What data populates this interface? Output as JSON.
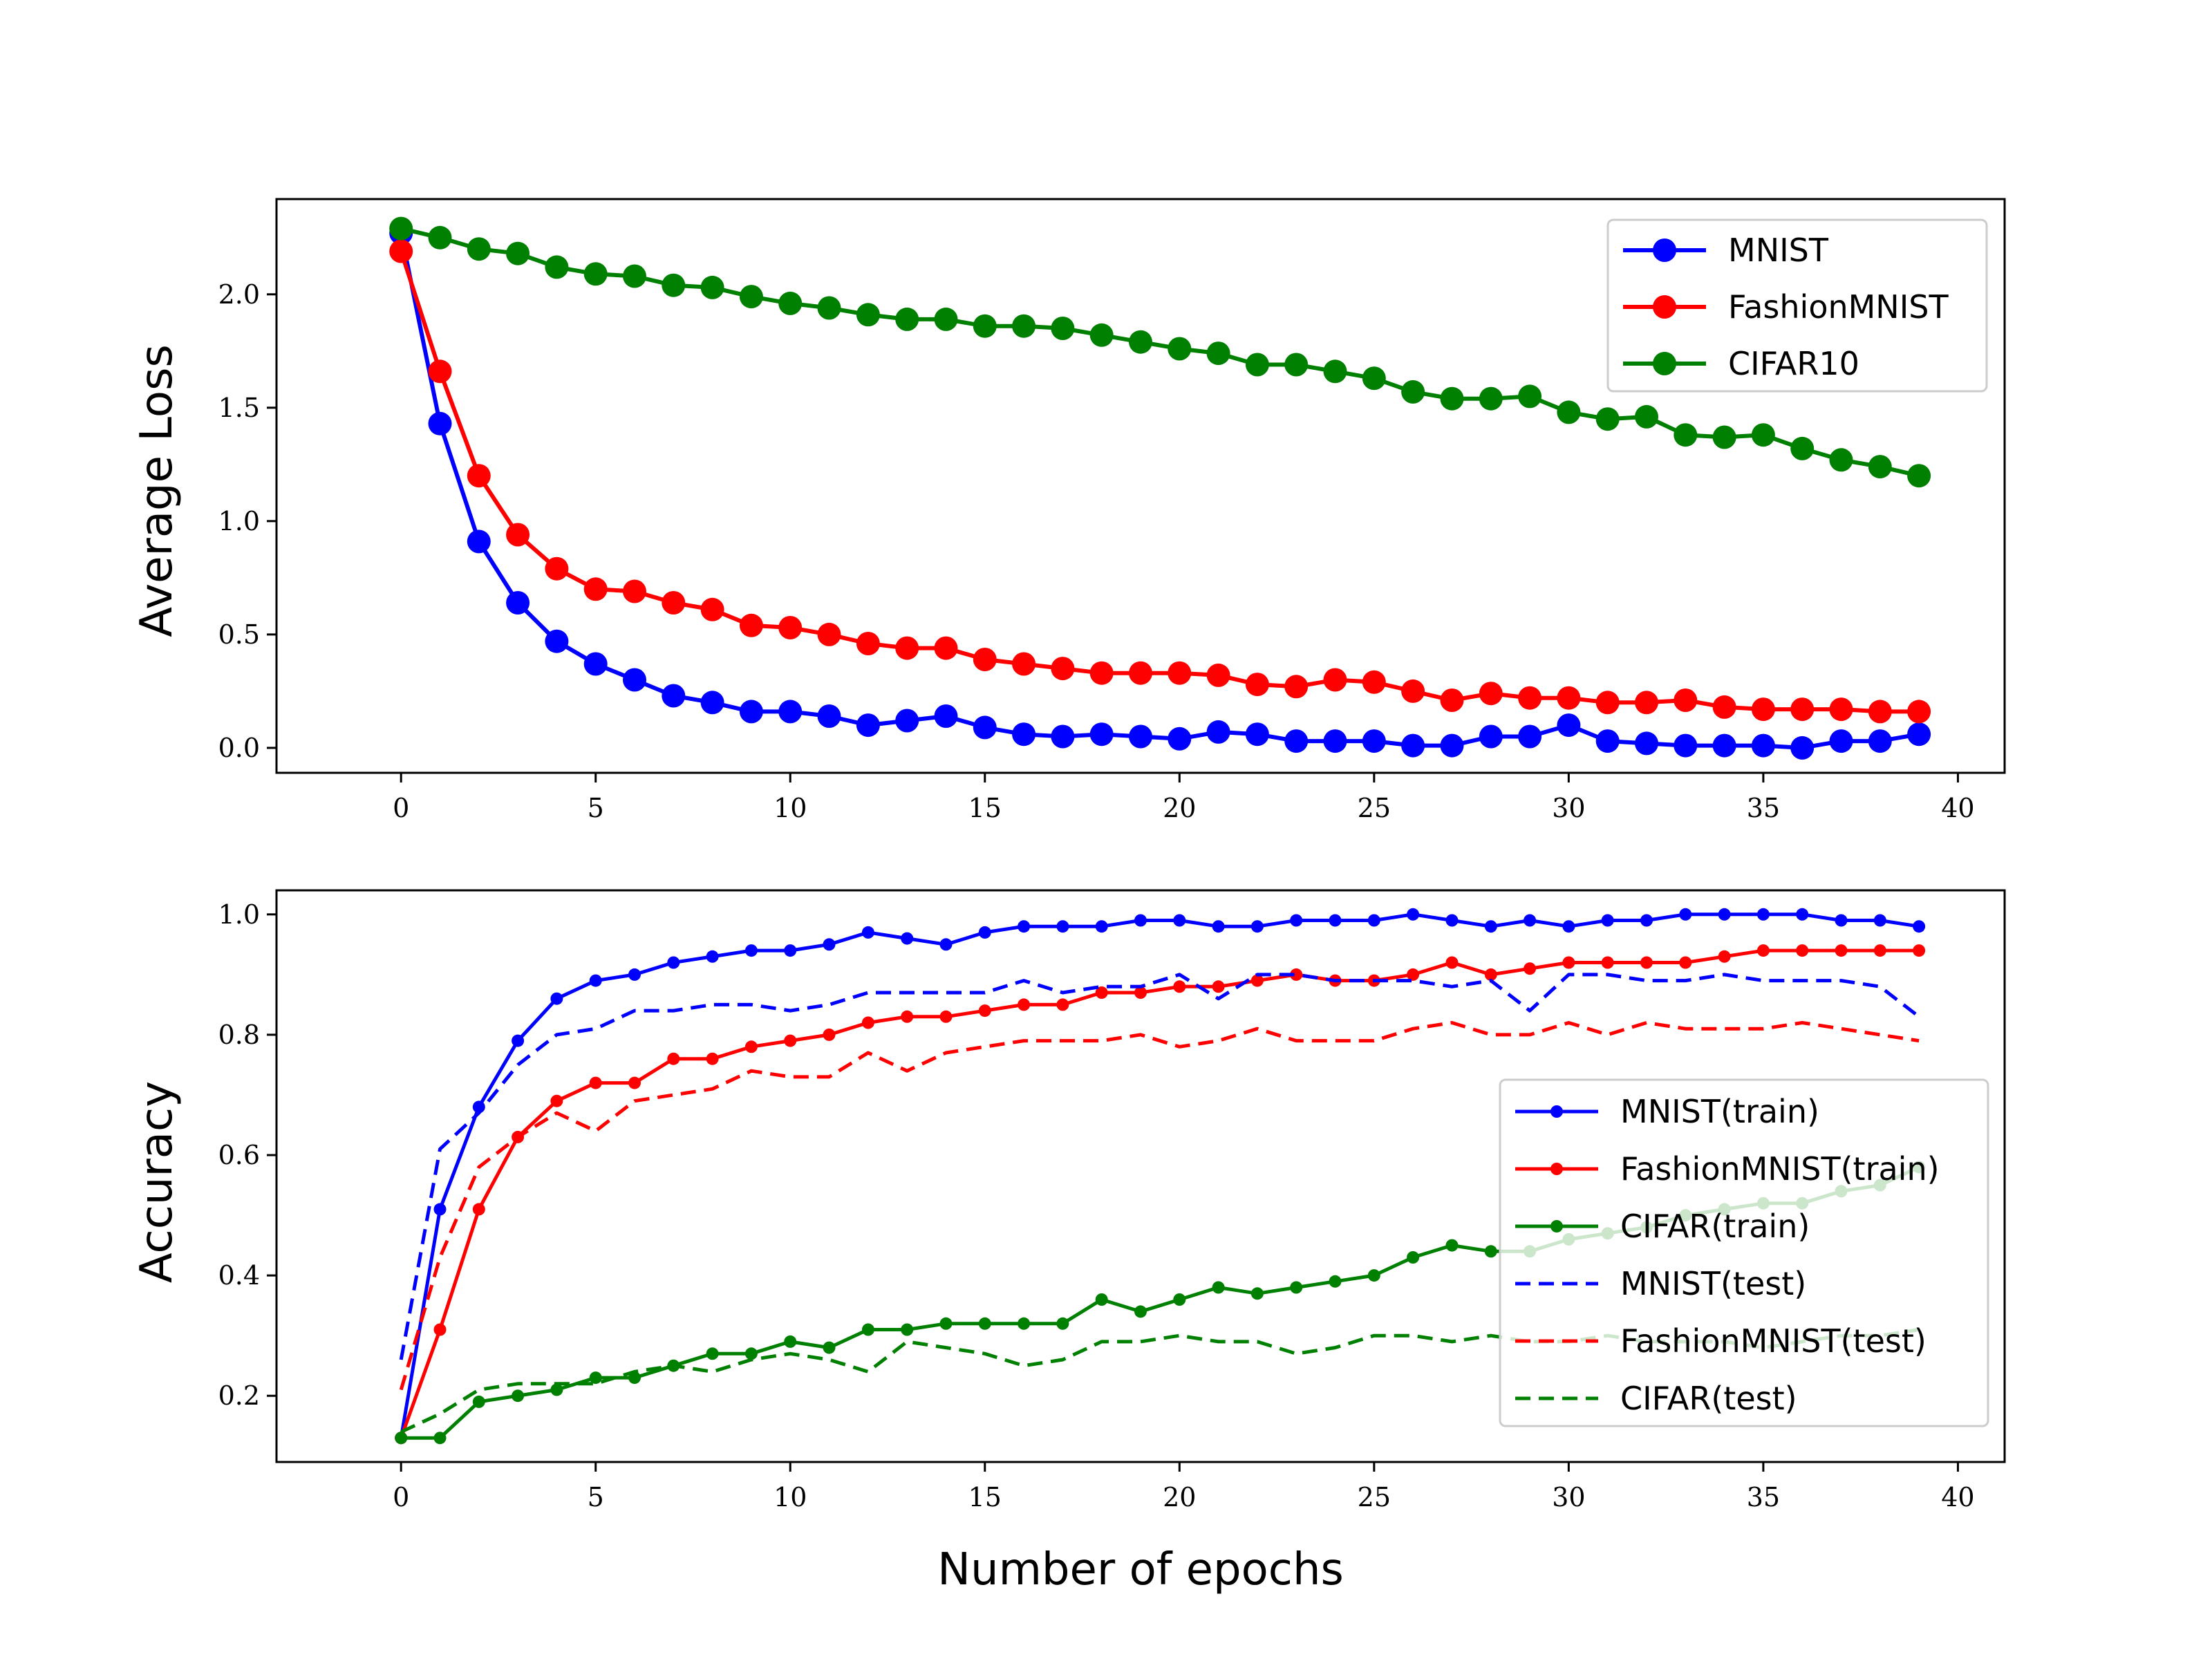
{
  "chart_data": [
    {
      "type": "line",
      "xlabel": "",
      "ylabel": "Average Loss",
      "xlim": [
        -3.2,
        41.2
      ],
      "ylim": [
        -0.11,
        2.42
      ],
      "xticks": [
        0,
        5,
        10,
        15,
        20,
        25,
        30,
        35,
        40
      ],
      "yticks": [
        0.0,
        0.5,
        1.0,
        1.5,
        2.0
      ],
      "ytick_labels": [
        "0.0",
        "0.5",
        "1.0",
        "1.5",
        "2.0"
      ],
      "legend_position": "top-right",
      "series": [
        {
          "name": "MNIST",
          "color": "#0000ff",
          "style": "solid",
          "marker": "large",
          "values": [
            2.27,
            1.43,
            0.91,
            0.64,
            0.47,
            0.37,
            0.3,
            0.23,
            0.2,
            0.16,
            0.16,
            0.14,
            0.1,
            0.12,
            0.14,
            0.09,
            0.06,
            0.05,
            0.06,
            0.05,
            0.04,
            0.07,
            0.06,
            0.03,
            0.03,
            0.03,
            0.01,
            0.01,
            0.05,
            0.05,
            0.1,
            0.03,
            0.02,
            0.01,
            0.01,
            0.01,
            0.0,
            0.03,
            0.03,
            0.06
          ]
        },
        {
          "name": "FashionMNIST",
          "color": "#ff0000",
          "style": "solid",
          "marker": "large",
          "values": [
            2.19,
            1.66,
            1.2,
            0.94,
            0.79,
            0.7,
            0.69,
            0.64,
            0.61,
            0.54,
            0.53,
            0.5,
            0.46,
            0.44,
            0.44,
            0.39,
            0.37,
            0.35,
            0.33,
            0.33,
            0.33,
            0.32,
            0.28,
            0.27,
            0.3,
            0.29,
            0.25,
            0.21,
            0.24,
            0.22,
            0.22,
            0.2,
            0.2,
            0.21,
            0.18,
            0.17,
            0.17,
            0.17,
            0.16,
            0.16
          ]
        },
        {
          "name": "CIFAR10",
          "color": "#008000",
          "style": "solid",
          "marker": "large",
          "values": [
            2.29,
            2.25,
            2.2,
            2.18,
            2.12,
            2.09,
            2.08,
            2.04,
            2.03,
            1.99,
            1.96,
            1.94,
            1.91,
            1.89,
            1.89,
            1.86,
            1.86,
            1.85,
            1.82,
            1.79,
            1.76,
            1.74,
            1.69,
            1.69,
            1.66,
            1.63,
            1.57,
            1.54,
            1.54,
            1.55,
            1.48,
            1.45,
            1.46,
            1.38,
            1.37,
            1.38,
            1.32,
            1.27,
            1.24,
            1.2
          ]
        }
      ]
    },
    {
      "type": "line",
      "xlabel": "Number of epochs",
      "ylabel": "Accuracy",
      "xlim": [
        -3.2,
        41.2
      ],
      "ylim": [
        0.09,
        1.04
      ],
      "xticks": [
        0,
        5,
        10,
        15,
        20,
        25,
        30,
        35,
        40
      ],
      "yticks": [
        0.2,
        0.4,
        0.6,
        0.8,
        1.0
      ],
      "ytick_labels": [
        "0.2",
        "0.4",
        "0.6",
        "0.8",
        "1.0"
      ],
      "legend_position": "center-right",
      "series": [
        {
          "name": "MNIST(train)",
          "color": "#0000ff",
          "style": "solid",
          "marker": "small",
          "values": [
            0.13,
            0.51,
            0.68,
            0.79,
            0.86,
            0.89,
            0.9,
            0.92,
            0.93,
            0.94,
            0.94,
            0.95,
            0.97,
            0.96,
            0.95,
            0.97,
            0.98,
            0.98,
            0.98,
            0.99,
            0.99,
            0.98,
            0.98,
            0.99,
            0.99,
            0.99,
            1.0,
            0.99,
            0.98,
            0.99,
            0.98,
            0.99,
            0.99,
            1.0,
            1.0,
            1.0,
            1.0,
            0.99,
            0.99,
            0.98
          ]
        },
        {
          "name": "FashionMNIST(train)",
          "color": "#ff0000",
          "style": "solid",
          "marker": "small",
          "values": [
            0.13,
            0.31,
            0.51,
            0.63,
            0.69,
            0.72,
            0.72,
            0.76,
            0.76,
            0.78,
            0.79,
            0.8,
            0.82,
            0.83,
            0.83,
            0.84,
            0.85,
            0.85,
            0.87,
            0.87,
            0.88,
            0.88,
            0.89,
            0.9,
            0.89,
            0.89,
            0.9,
            0.92,
            0.9,
            0.91,
            0.92,
            0.92,
            0.92,
            0.92,
            0.93,
            0.94,
            0.94,
            0.94,
            0.94,
            0.94
          ]
        },
        {
          "name": "CIFAR(train)",
          "color": "#008000",
          "style": "solid",
          "marker": "small",
          "values": [
            0.13,
            0.13,
            0.19,
            0.2,
            0.21,
            0.23,
            0.23,
            0.25,
            0.27,
            0.27,
            0.29,
            0.28,
            0.31,
            0.31,
            0.32,
            0.32,
            0.32,
            0.32,
            0.36,
            0.34,
            0.36,
            0.38,
            0.37,
            0.38,
            0.39,
            0.4,
            0.43,
            0.45,
            0.44,
            0.44,
            0.46,
            0.47,
            0.48,
            0.5,
            0.51,
            0.52,
            0.52,
            0.54,
            0.55,
            0.58
          ]
        },
        {
          "name": "MNIST(test)",
          "color": "#0000ff",
          "style": "dashed",
          "marker": "none",
          "values": [
            0.26,
            0.61,
            0.67,
            0.75,
            0.8,
            0.81,
            0.84,
            0.84,
            0.85,
            0.85,
            0.84,
            0.85,
            0.87,
            0.87,
            0.87,
            0.87,
            0.89,
            0.87,
            0.88,
            0.88,
            0.9,
            0.86,
            0.9,
            0.9,
            0.89,
            0.89,
            0.89,
            0.88,
            0.89,
            0.84,
            0.9,
            0.9,
            0.89,
            0.89,
            0.9,
            0.89,
            0.89,
            0.89,
            0.88,
            0.83
          ]
        },
        {
          "name": "FashionMNIST(test)",
          "color": "#ff0000",
          "style": "dashed",
          "marker": "none",
          "values": [
            0.21,
            0.43,
            0.58,
            0.63,
            0.67,
            0.64,
            0.69,
            0.7,
            0.71,
            0.74,
            0.73,
            0.73,
            0.77,
            0.74,
            0.77,
            0.78,
            0.79,
            0.79,
            0.79,
            0.8,
            0.78,
            0.79,
            0.81,
            0.79,
            0.79,
            0.79,
            0.81,
            0.82,
            0.8,
            0.8,
            0.82,
            0.8,
            0.82,
            0.81,
            0.81,
            0.81,
            0.82,
            0.81,
            0.8,
            0.79
          ]
        },
        {
          "name": "CIFAR(test)",
          "color": "#008000",
          "style": "dashed",
          "marker": "none",
          "values": [
            0.14,
            0.17,
            0.21,
            0.22,
            0.22,
            0.22,
            0.24,
            0.25,
            0.24,
            0.26,
            0.27,
            0.26,
            0.24,
            0.29,
            0.28,
            0.27,
            0.25,
            0.26,
            0.29,
            0.29,
            0.3,
            0.29,
            0.29,
            0.27,
            0.28,
            0.3,
            0.3,
            0.29,
            0.3,
            0.29,
            0.29,
            0.3,
            0.29,
            0.29,
            0.29,
            0.28,
            0.29,
            0.3,
            0.3,
            0.31
          ]
        }
      ]
    }
  ]
}
